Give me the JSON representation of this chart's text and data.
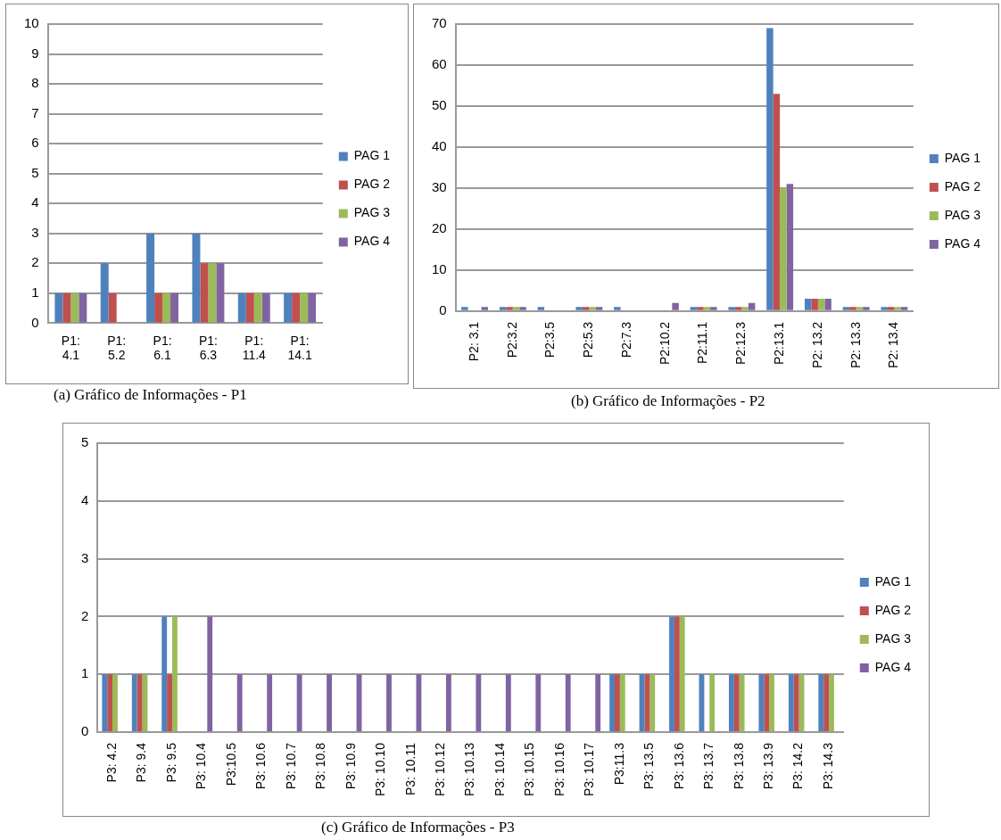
{
  "chart_data": [
    {
      "type": "bar",
      "title": "(a) Gráfico de Informações - P1",
      "categories": [
        "P1: 4.1",
        "P1: 5.2",
        "P1: 6.1",
        "P1: 6.3",
        "P1: 11.4",
        "P1: 14.1"
      ],
      "series": [
        {
          "name": "PAG 1",
          "color": "#4f81bd",
          "values": [
            1,
            2,
            3,
            3,
            1,
            1
          ]
        },
        {
          "name": "PAG 2",
          "color": "#c0504d",
          "values": [
            1,
            1,
            1,
            2,
            1,
            1
          ]
        },
        {
          "name": "PAG 3",
          "color": "#9bbb59",
          "values": [
            1,
            0,
            1,
            2,
            1,
            1
          ]
        },
        {
          "name": "PAG 4",
          "color": "#8064a2",
          "values": [
            1,
            0,
            1,
            2,
            1,
            1
          ]
        }
      ],
      "ylim": [
        0,
        10
      ],
      "yticks": [
        0,
        1,
        2,
        3,
        4,
        5,
        6,
        7,
        8,
        9,
        10
      ],
      "grid": "y",
      "legend": "right"
    },
    {
      "type": "bar",
      "title": "(b) Gráfico de Informações - P2",
      "categories": [
        "P2: 3.1",
        "P2:3.2",
        "P2:3.5",
        "P2:5.3",
        "P2:7.3",
        "P2:10.2",
        "P2:11.1",
        "P2:12.3",
        "P2:13.1",
        "P2: 13.2",
        "P2: 13.3",
        "P2: 13.4"
      ],
      "series": [
        {
          "name": "PAG 1",
          "color": "#4f81bd",
          "values": [
            1,
            1,
            1,
            1,
            1,
            0,
            1,
            1,
            69,
            3,
            1,
            1
          ]
        },
        {
          "name": "PAG 2",
          "color": "#c0504d",
          "values": [
            0,
            1,
            0,
            1,
            0,
            0,
            1,
            1,
            53,
            3,
            1,
            1
          ]
        },
        {
          "name": "PAG 3",
          "color": "#9bbb59",
          "values": [
            0,
            1,
            0,
            1,
            0,
            0,
            1,
            1,
            30,
            3,
            1,
            1
          ]
        },
        {
          "name": "PAG 4",
          "color": "#8064a2",
          "values": [
            1,
            1,
            0,
            1,
            0,
            2,
            1,
            2,
            31,
            3,
            1,
            1
          ]
        }
      ],
      "ylim": [
        0,
        70
      ],
      "yticks": [
        0,
        10,
        20,
        30,
        40,
        50,
        60,
        70
      ],
      "grid": "y",
      "legend": "right"
    },
    {
      "type": "bar",
      "title": "(c) Gráfico de Informações - P3",
      "categories": [
        "P3: 4.2",
        "P3: 9.4",
        "P3: 9.5",
        "P3: 10.4",
        "P3:10.5",
        "P3: 10.6",
        "P3: 10.7",
        "P3: 10.8",
        "P3: 10.9",
        "P3: 10.10",
        "P3: 10.11",
        "P3: 10.12",
        "P3: 10.13",
        "P3: 10.14",
        "P3: 10.15",
        "P3: 10.16",
        "P3: 10.17",
        "P3:11.3",
        "P3: 13.5",
        "P3: 13.6",
        "P3: 13.7",
        "P3: 13.8",
        "P3: 13.9",
        "P3: 14.2",
        "P3: 14.3"
      ],
      "series": [
        {
          "name": "PAG 1",
          "color": "#4f81bd",
          "values": [
            1,
            1,
            2,
            0,
            0,
            0,
            0,
            0,
            0,
            0,
            0,
            0,
            0,
            0,
            0,
            0,
            0,
            1,
            1,
            2,
            1,
            1,
            1,
            1,
            1
          ]
        },
        {
          "name": "PAG 2",
          "color": "#c0504d",
          "values": [
            1,
            1,
            1,
            0,
            0,
            0,
            0,
            0,
            0,
            0,
            0,
            0,
            0,
            0,
            0,
            0,
            0,
            1,
            1,
            2,
            0,
            1,
            1,
            1,
            1
          ]
        },
        {
          "name": "PAG 3",
          "color": "#9bbb59",
          "values": [
            1,
            1,
            2,
            0,
            0,
            0,
            0,
            0,
            0,
            0,
            0,
            0,
            0,
            0,
            0,
            0,
            0,
            1,
            1,
            2,
            1,
            1,
            1,
            1,
            1
          ]
        },
        {
          "name": "PAG 4",
          "color": "#8064a2",
          "values": [
            0,
            0,
            0,
            2,
            1,
            1,
            1,
            1,
            1,
            1,
            1,
            1,
            1,
            1,
            1,
            1,
            1,
            0,
            0,
            0,
            0,
            0,
            0,
            0,
            0
          ]
        }
      ],
      "ylim": [
        0,
        5
      ],
      "yticks": [
        0,
        1,
        2,
        3,
        4,
        5
      ],
      "grid": "y",
      "legend": "right"
    }
  ]
}
